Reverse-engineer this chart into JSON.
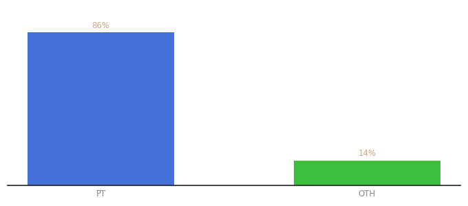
{
  "categories": [
    "PT",
    "OTH"
  ],
  "values": [
    86,
    14
  ],
  "bar_colors": [
    "#4472D9",
    "#3DBF3D"
  ],
  "label_color": "#C8A882",
  "label_fontsize": 8.5,
  "tick_fontsize": 8.5,
  "tick_color": "#888888",
  "background_color": "#ffffff",
  "ylim": [
    0,
    100
  ],
  "bar_width": 0.55,
  "xlim": [
    -0.35,
    1.35
  ]
}
